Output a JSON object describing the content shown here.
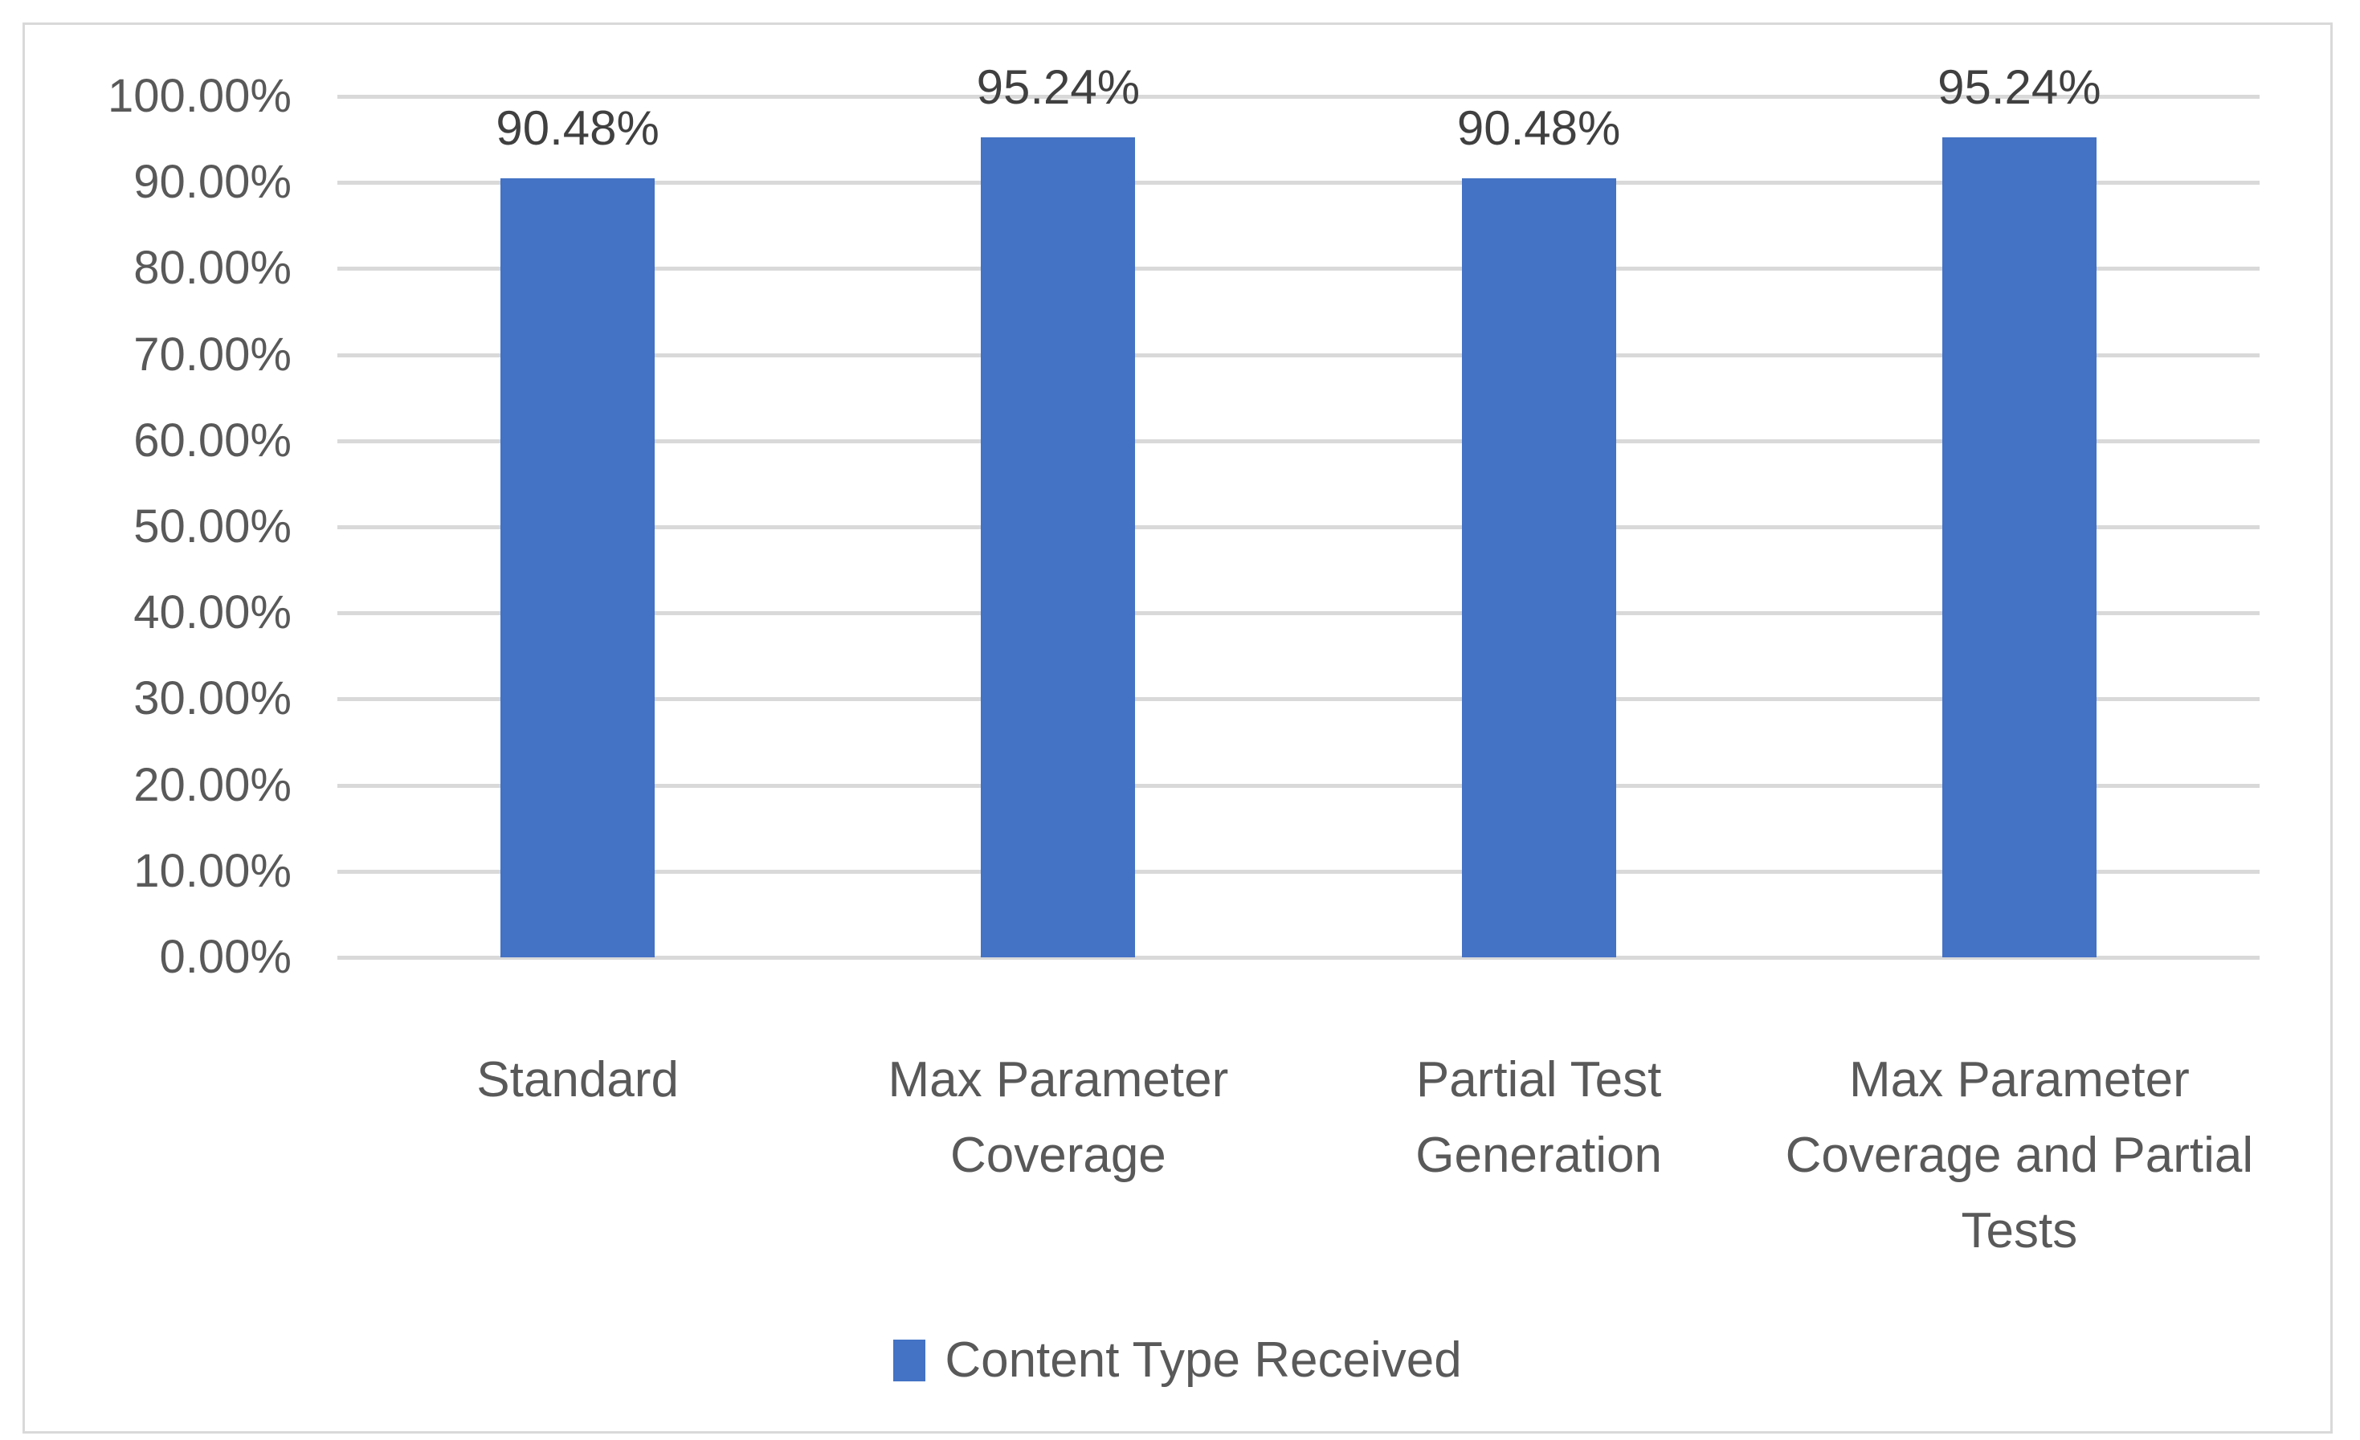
{
  "chart_data": {
    "type": "bar",
    "title": "",
    "categories": [
      "Standard",
      "Max Parameter Coverage",
      "Partial Test Generation",
      "Max Parameter Coverage and Partial Tests"
    ],
    "values": [
      90.48,
      95.24,
      90.48,
      95.24
    ],
    "data_labels": [
      "90.48%",
      "95.24%",
      "90.48%",
      "95.24%"
    ],
    "series_name": "Content Type Received",
    "xlabel": "",
    "ylabel": "",
    "ylim": [
      0,
      100
    ],
    "ytick_step": 10,
    "ytick_labels_top_to_bottom": [
      "100.00%",
      "90.00%",
      "80.00%",
      "70.00%",
      "60.00%",
      "50.00%",
      "40.00%",
      "30.00%",
      "20.00%",
      "10.00%",
      "0.00%"
    ],
    "grid": true,
    "legend_position": "bottom",
    "colors": {
      "bar": "#4472C4",
      "gridline": "#D9D9D9",
      "axis_label": "#595959",
      "data_label": "#404040",
      "category_label": "#595959",
      "chart_border": "#D9D9D9",
      "background": "#FFFFFF"
    }
  }
}
